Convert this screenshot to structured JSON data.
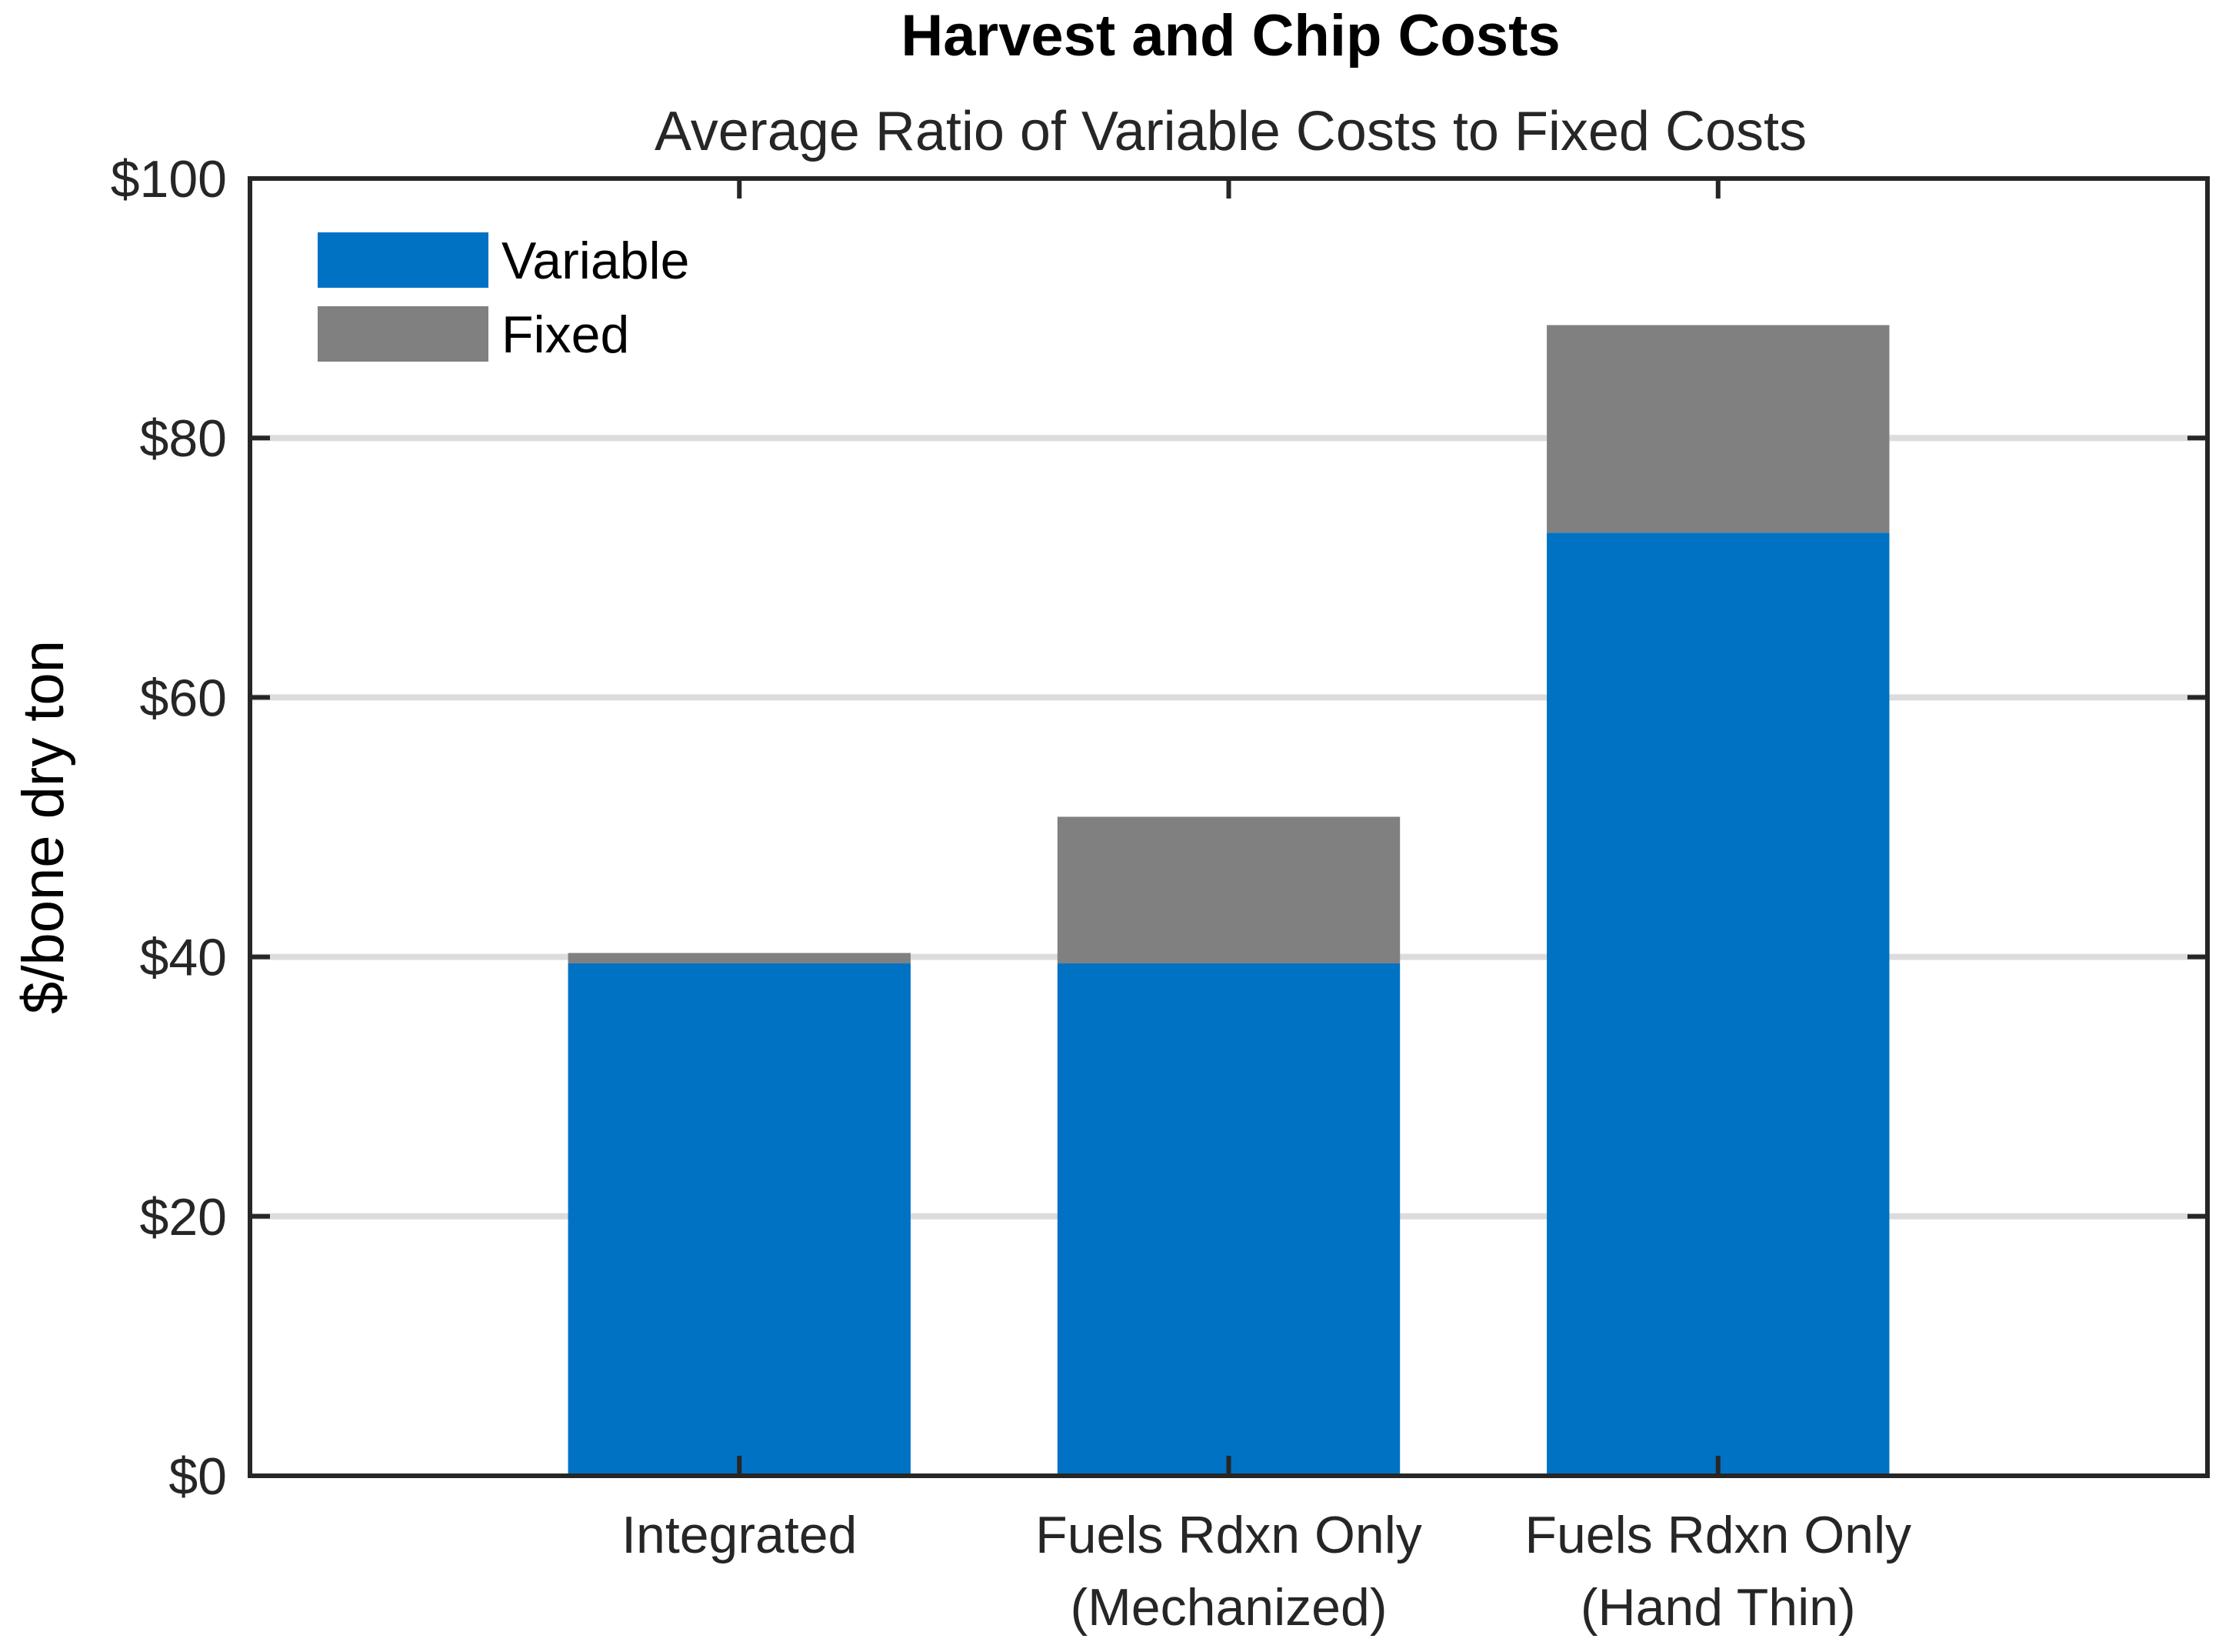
{
  "chart_data": {
    "type": "bar",
    "stacked": true,
    "title": "Harvest and Chip Costs",
    "subtitle": "Average Ratio of Variable Costs to Fixed Costs",
    "xlabel": "",
    "ylabel": "$/bone dry ton",
    "ylim": [
      0,
      100
    ],
    "yticks": [
      {
        "value": 0,
        "label": "$0"
      },
      {
        "value": 20,
        "label": "$20"
      },
      {
        "value": 40,
        "label": "$40"
      },
      {
        "value": 60,
        "label": "$60"
      },
      {
        "value": 80,
        "label": "$80"
      },
      {
        "value": 100,
        "label": "$100"
      }
    ],
    "xlim": [
      0,
      4
    ],
    "categories": [
      {
        "position": 1,
        "lines": [
          "Integrated"
        ]
      },
      {
        "position": 2,
        "lines": [
          "Fuels Rdxn Only",
          "(Mechanized)"
        ]
      },
      {
        "position": 3,
        "lines": [
          "Fuels Rdxn Only",
          "(Hand Thin)"
        ]
      }
    ],
    "series": [
      {
        "name": "Variable",
        "color": "#0072c4",
        "values": [
          39.5,
          39.5,
          72.7
        ]
      },
      {
        "name": "Fixed",
        "color": "#808080",
        "values": [
          0.8,
          11.3,
          16.0
        ]
      }
    ],
    "grid": "horizontal",
    "legend_position": "top-left",
    "colors": {
      "axis": "#262626",
      "grid": "#dcdcdc",
      "text": "#262626"
    }
  }
}
